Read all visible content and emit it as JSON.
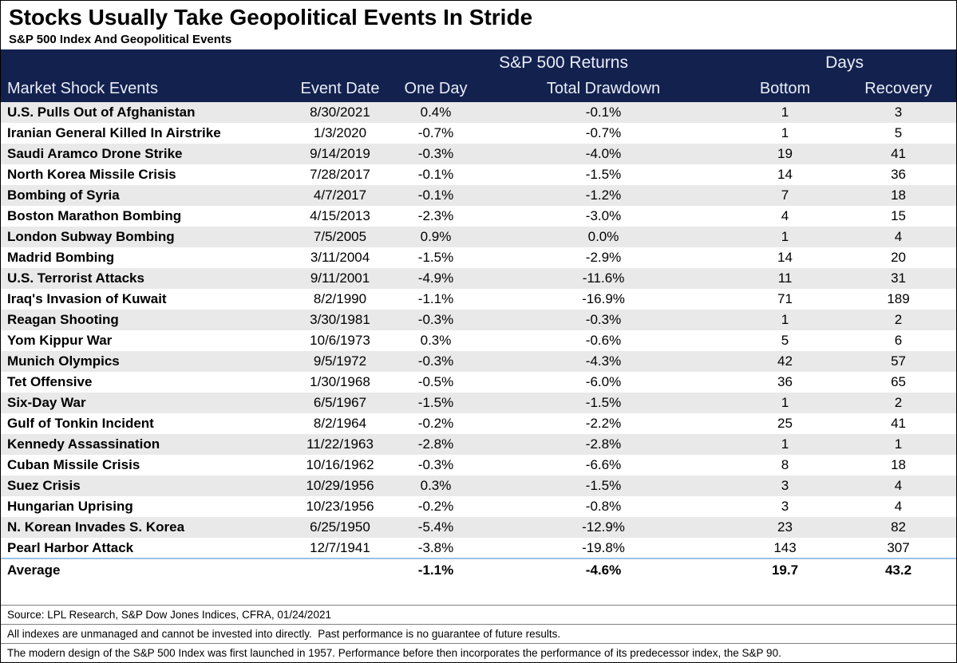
{
  "title": "Stocks Usually Take Geopolitical Events In Stride",
  "subtitle": "S&P 500 Index And Geopolitical Events",
  "chart_data": {
    "type": "table",
    "title": "Stocks Usually Take Geopolitical Events In Stride",
    "subtitle": "S&P 500 Index And Geopolitical Events",
    "group_headers": {
      "returns": "S&P 500 Returns",
      "days": "Days"
    },
    "columns": [
      "Market Shock Events",
      "Event Date",
      "One Day",
      "Total Drawdown",
      "Bottom",
      "Recovery"
    ],
    "rows": [
      [
        "U.S. Pulls Out of Afghanistan",
        "8/30/2021",
        "0.4%",
        "-0.1%",
        "1",
        "3"
      ],
      [
        "Iranian General Killed In Airstrike",
        "1/3/2020",
        "-0.7%",
        "-0.7%",
        "1",
        "5"
      ],
      [
        "Saudi Aramco Drone Strike",
        "9/14/2019",
        "-0.3%",
        "-4.0%",
        "19",
        "41"
      ],
      [
        "North Korea Missile Crisis",
        "7/28/2017",
        "-0.1%",
        "-1.5%",
        "14",
        "36"
      ],
      [
        "Bombing of Syria",
        "4/7/2017",
        "-0.1%",
        "-1.2%",
        "7",
        "18"
      ],
      [
        "Boston Marathon Bombing",
        "4/15/2013",
        "-2.3%",
        "-3.0%",
        "4",
        "15"
      ],
      [
        "London Subway Bombing",
        "7/5/2005",
        "0.9%",
        "0.0%",
        "1",
        "4"
      ],
      [
        "Madrid Bombing",
        "3/11/2004",
        "-1.5%",
        "-2.9%",
        "14",
        "20"
      ],
      [
        "U.S. Terrorist Attacks",
        "9/11/2001",
        "-4.9%",
        "-11.6%",
        "11",
        "31"
      ],
      [
        "Iraq's Invasion of Kuwait",
        "8/2/1990",
        "-1.1%",
        "-16.9%",
        "71",
        "189"
      ],
      [
        "Reagan Shooting",
        "3/30/1981",
        "-0.3%",
        "-0.3%",
        "1",
        "2"
      ],
      [
        "Yom Kippur War",
        "10/6/1973",
        "0.3%",
        "-0.6%",
        "5",
        "6"
      ],
      [
        "Munich Olympics",
        "9/5/1972",
        "-0.3%",
        "-4.3%",
        "42",
        "57"
      ],
      [
        "Tet Offensive",
        "1/30/1968",
        "-0.5%",
        "-6.0%",
        "36",
        "65"
      ],
      [
        "Six-Day War",
        "6/5/1967",
        "-1.5%",
        "-1.5%",
        "1",
        "2"
      ],
      [
        "Gulf of Tonkin Incident",
        "8/2/1964",
        "-0.2%",
        "-2.2%",
        "25",
        "41"
      ],
      [
        "Kennedy Assassination",
        "11/22/1963",
        "-2.8%",
        "-2.8%",
        "1",
        "1"
      ],
      [
        "Cuban Missile Crisis",
        "10/16/1962",
        "-0.3%",
        "-6.6%",
        "8",
        "18"
      ],
      [
        "Suez Crisis",
        "10/29/1956",
        "0.3%",
        "-1.5%",
        "3",
        "4"
      ],
      [
        "Hungarian Uprising",
        "10/23/1956",
        "-0.2%",
        "-0.8%",
        "3",
        "4"
      ],
      [
        "N. Korean Invades S. Korea",
        "6/25/1950",
        "-5.4%",
        "-12.9%",
        "23",
        "82"
      ],
      [
        "Pearl Harbor Attack",
        "12/7/1941",
        "-3.8%",
        "-19.8%",
        "143",
        "307"
      ]
    ],
    "average": [
      "Average",
      "",
      "-1.1%",
      "-4.6%",
      "19.7",
      "43.2"
    ],
    "colors": {
      "header_background": "#13214E",
      "header_text": "#E9EDF8",
      "stripe": "#E9E9E9",
      "average_divider": "#9CC3E5"
    }
  },
  "footnotes": [
    "Source: LPL Research, S&P Dow Jones Indices, CFRA, 01/24/2021",
    "All indexes are unmanaged and cannot be invested into directly.  Past performance is no guarantee of future results.",
    "The modern design of the S&P 500 Index was first launched in 1957. Performance before then incorporates the performance of its predecessor index, the S&P 90."
  ]
}
